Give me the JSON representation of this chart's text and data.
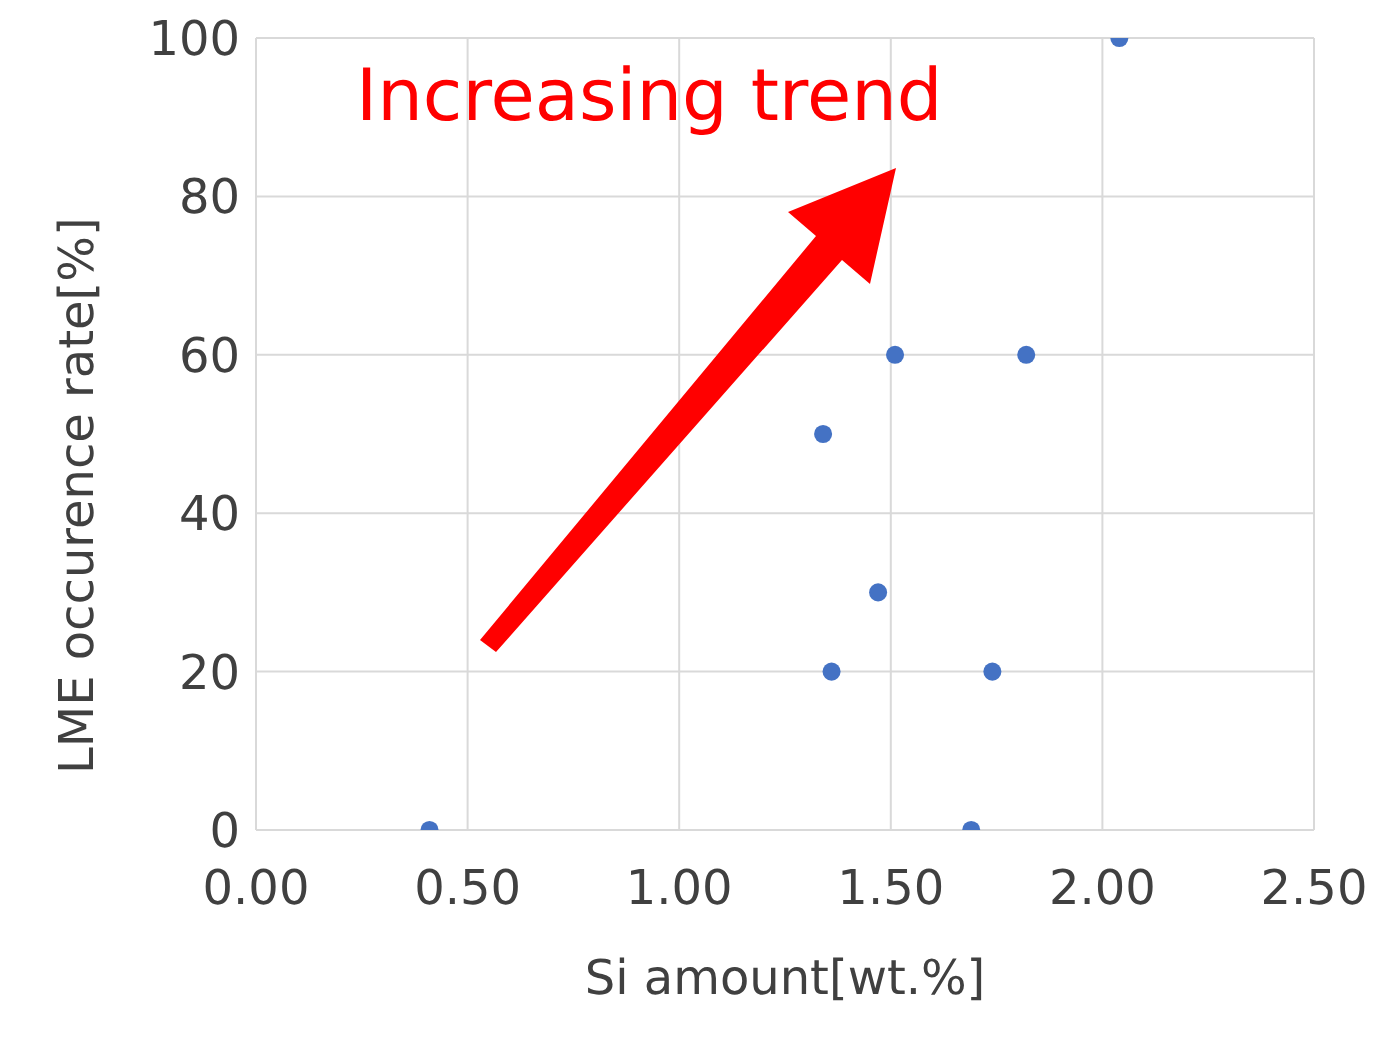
{
  "chart_data": {
    "type": "scatter",
    "xlabel": "Si amount[wt.%]",
    "ylabel": "LME occurence rate[%]",
    "annotations": [
      "Increasing trend"
    ],
    "x": [
      0.41,
      1.69,
      1.36,
      1.74,
      1.47,
      1.34,
      1.51,
      1.82,
      2.04
    ],
    "series": [
      {
        "color": "#4472c4",
        "values": [
          0,
          0,
          20,
          20,
          30,
          50,
          60,
          60,
          100
        ]
      }
    ],
    "xlim": [
      0,
      2.5
    ],
    "xticks": [
      {
        "value": 0,
        "label": "0.00"
      },
      {
        "value": 0.5,
        "label": "0.50"
      },
      {
        "value": 1,
        "label": "1.00"
      },
      {
        "value": 1.5,
        "label": "1.50"
      },
      {
        "value": 2,
        "label": "2.00"
      },
      {
        "value": 2.5,
        "label": "2.50"
      }
    ],
    "ylim": [
      0,
      100
    ],
    "yticks": [
      0,
      20,
      40,
      60,
      80,
      100
    ],
    "grid": true,
    "marker": "circle"
  }
}
